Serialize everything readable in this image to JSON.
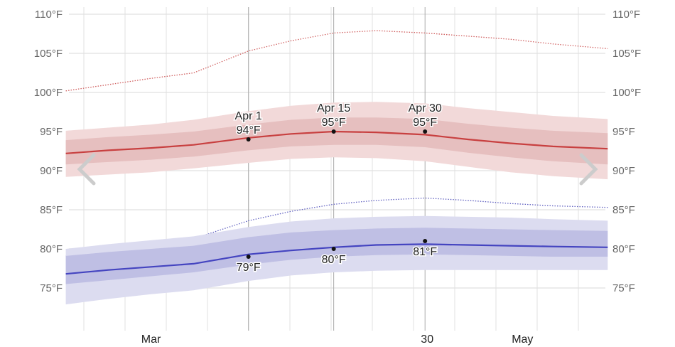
{
  "chart_data": {
    "type": "area",
    "title": "",
    "xlabel": "",
    "ylabel": "",
    "ylim": [
      70,
      112
    ],
    "y_ticks": [
      "110°F",
      "105°F",
      "100°F",
      "95°F",
      "90°F",
      "85°F",
      "80°F",
      "75°F"
    ],
    "y_tick_values": [
      110,
      105,
      100,
      95,
      90,
      85,
      80,
      75
    ],
    "x_tick_labels": [
      {
        "label": "Mar",
        "date": "Mar 16"
      },
      {
        "label": "30",
        "date": "Apr 30"
      },
      {
        "label": "May",
        "date": "May 16"
      }
    ],
    "grid": true,
    "x": [
      "Mar 2",
      "Mar 9",
      "Mar 16",
      "Mar 23",
      "Apr 1",
      "Apr 8",
      "Apr 15",
      "Apr 22",
      "Apr 30",
      "May 7",
      "May 14",
      "May 21",
      "May 30"
    ],
    "series": [
      {
        "key": "high-record",
        "style": "dotted",
        "color": "#d06060",
        "values": [
          100.2,
          101.0,
          101.8,
          102.5,
          105.3,
          106.6,
          107.6,
          107.9,
          107.6,
          107.2,
          106.8,
          106.2,
          105.6
        ]
      },
      {
        "key": "high-outer-band",
        "color": "#f2d9d9",
        "lower": [
          89.2,
          89.5,
          89.8,
          90.3,
          91.0,
          91.5,
          91.7,
          91.6,
          91.2,
          90.5,
          89.8,
          89.3,
          88.9
        ],
        "upper": [
          95.1,
          95.5,
          95.9,
          96.5,
          97.6,
          98.3,
          98.7,
          98.8,
          98.6,
          98.0,
          97.5,
          97.0,
          96.6
        ]
      },
      {
        "key": "high-inner-band",
        "color": "#e6bfbf",
        "lower": [
          90.8,
          91.1,
          91.4,
          91.8,
          92.6,
          93.1,
          93.3,
          93.3,
          93.0,
          92.3,
          91.7,
          91.2,
          90.8
        ],
        "upper": [
          93.9,
          94.3,
          94.6,
          95.0,
          95.9,
          96.5,
          96.8,
          96.8,
          96.6,
          96.0,
          95.5,
          95.1,
          94.8
        ]
      },
      {
        "key": "average-high",
        "color": "#c84040",
        "values": [
          92.2,
          92.6,
          92.9,
          93.3,
          94.2,
          94.7,
          95.0,
          94.9,
          94.6,
          94.0,
          93.5,
          93.1,
          92.8
        ]
      },
      {
        "key": "low-record",
        "style": "dotted",
        "color": "#6060c0",
        "values": [
          79.1,
          79.8,
          80.6,
          81.3,
          83.6,
          84.8,
          85.7,
          86.2,
          86.5,
          86.2,
          85.8,
          85.5,
          85.3
        ]
      },
      {
        "key": "low-outer-band",
        "color": "#dcdcf0",
        "lower": [
          72.9,
          73.6,
          74.2,
          74.7,
          75.9,
          76.6,
          77.0,
          77.2,
          77.3,
          77.3,
          77.3,
          77.3,
          77.3
        ],
        "upper": [
          80.0,
          80.6,
          81.1,
          81.6,
          82.8,
          83.5,
          83.9,
          84.1,
          84.2,
          84.1,
          84.0,
          83.8,
          83.6
        ]
      },
      {
        "key": "low-inner-band",
        "color": "#bfbfe4",
        "lower": [
          75.5,
          76.0,
          76.5,
          77.0,
          78.0,
          78.6,
          79.0,
          79.2,
          79.3,
          79.2,
          79.1,
          79.0,
          79.0
        ],
        "upper": [
          79.1,
          79.6,
          80.0,
          80.4,
          81.5,
          82.1,
          82.4,
          82.6,
          82.7,
          82.6,
          82.5,
          82.4,
          82.3
        ]
      },
      {
        "key": "average-low",
        "color": "#4444c0",
        "values": [
          76.8,
          77.3,
          77.7,
          78.1,
          79.3,
          79.8,
          80.2,
          80.5,
          80.6,
          80.5,
          80.4,
          80.3,
          80.2
        ]
      }
    ],
    "annotations": [
      {
        "date": "Apr 1",
        "high": 94,
        "low": 79,
        "date_label": "Apr 1",
        "high_label": "94°F",
        "low_label": "79°F"
      },
      {
        "date": "Apr 15",
        "high": 95,
        "low": 80,
        "date_label": "Apr 15",
        "high_label": "95°F",
        "low_label": "80°F"
      },
      {
        "date": "Apr 30",
        "high": 95,
        "low": 81,
        "date_label": "Apr 30",
        "high_label": "95°F",
        "low_label": "81°F"
      }
    ]
  },
  "nav": {
    "prev_icon": "chevron-left-icon",
    "next_icon": "chevron-right-icon"
  }
}
